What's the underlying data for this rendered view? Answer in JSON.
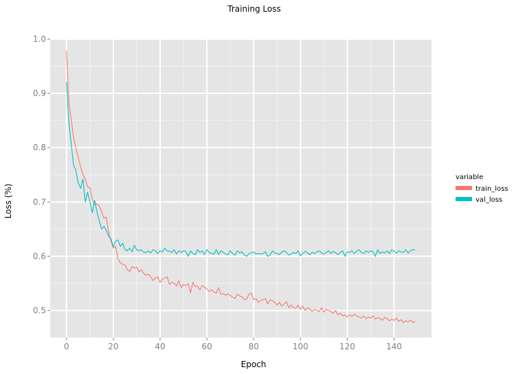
{
  "chart_data": {
    "type": "line",
    "title": "Training Loss",
    "xlabel": "Epoch",
    "ylabel": "Loss (%)",
    "xlim": [
      -7,
      156
    ],
    "ylim": [
      0.45,
      1.0
    ],
    "xticks": [
      0,
      20,
      40,
      60,
      80,
      100,
      120,
      140
    ],
    "yticks": [
      0.5,
      0.6,
      0.7,
      0.8,
      0.9,
      1.0
    ],
    "ytick_labels": [
      "0.5",
      "0.6",
      "0.7",
      "0.8",
      "0.9",
      "1.0"
    ],
    "legend": {
      "title": "variable",
      "position": "right"
    },
    "series": [
      {
        "name": "train_loss",
        "color": "#F8766D",
        "x": [
          0,
          1,
          2,
          3,
          4,
          5,
          6,
          7,
          8,
          9,
          10,
          11,
          12,
          13,
          14,
          15,
          16,
          17,
          18,
          19,
          20,
          21,
          22,
          23,
          24,
          25,
          26,
          27,
          28,
          29,
          30,
          31,
          32,
          33,
          34,
          35,
          36,
          37,
          38,
          39,
          40,
          41,
          42,
          43,
          44,
          45,
          46,
          47,
          48,
          49,
          50,
          51,
          52,
          53,
          54,
          55,
          56,
          57,
          58,
          59,
          60,
          61,
          62,
          63,
          64,
          65,
          66,
          67,
          68,
          69,
          70,
          71,
          72,
          73,
          74,
          75,
          76,
          77,
          78,
          79,
          80,
          81,
          82,
          83,
          84,
          85,
          86,
          87,
          88,
          89,
          90,
          91,
          92,
          93,
          94,
          95,
          96,
          97,
          98,
          99,
          100,
          101,
          102,
          103,
          104,
          105,
          106,
          107,
          108,
          109,
          110,
          111,
          112,
          113,
          114,
          115,
          116,
          117,
          118,
          119,
          120,
          121,
          122,
          123,
          124,
          125,
          126,
          127,
          128,
          129,
          130,
          131,
          132,
          133,
          134,
          135,
          136,
          137,
          138,
          139,
          140,
          141,
          142,
          143,
          144,
          145,
          146,
          147,
          148,
          149
        ],
        "values": [
          0.978,
          0.885,
          0.852,
          0.82,
          0.798,
          0.782,
          0.765,
          0.75,
          0.742,
          0.728,
          0.726,
          0.705,
          0.695,
          0.696,
          0.692,
          0.682,
          0.67,
          0.672,
          0.645,
          0.628,
          0.615,
          0.618,
          0.595,
          0.588,
          0.585,
          0.584,
          0.575,
          0.572,
          0.581,
          0.578,
          0.58,
          0.571,
          0.575,
          0.568,
          0.565,
          0.567,
          0.562,
          0.555,
          0.56,
          0.562,
          0.552,
          0.558,
          0.56,
          0.562,
          0.548,
          0.552,
          0.55,
          0.545,
          0.555,
          0.542,
          0.548,
          0.546,
          0.55,
          0.533,
          0.552,
          0.544,
          0.545,
          0.538,
          0.546,
          0.543,
          0.54,
          0.535,
          0.538,
          0.534,
          0.532,
          0.542,
          0.53,
          0.531,
          0.528,
          0.53,
          0.528,
          0.525,
          0.522,
          0.53,
          0.527,
          0.525,
          0.52,
          0.521,
          0.53,
          0.532,
          0.52,
          0.522,
          0.515,
          0.518,
          0.52,
          0.522,
          0.512,
          0.52,
          0.518,
          0.515,
          0.51,
          0.515,
          0.508,
          0.512,
          0.516,
          0.505,
          0.51,
          0.505,
          0.504,
          0.51,
          0.502,
          0.508,
          0.5,
          0.505,
          0.503,
          0.498,
          0.502,
          0.5,
          0.498,
          0.505,
          0.497,
          0.502,
          0.5,
          0.498,
          0.495,
          0.5,
          0.492,
          0.495,
          0.49,
          0.492,
          0.488,
          0.492,
          0.489,
          0.493,
          0.49,
          0.488,
          0.486,
          0.49,
          0.485,
          0.488,
          0.486,
          0.49,
          0.484,
          0.487,
          0.485,
          0.482,
          0.487,
          0.485,
          0.481,
          0.484,
          0.482,
          0.486,
          0.48,
          0.483,
          0.478,
          0.481,
          0.479,
          0.482,
          0.478,
          0.48
        ]
      },
      {
        "name": "val_loss",
        "color": "#00BFC4",
        "x": [
          0,
          1,
          2,
          3,
          4,
          5,
          6,
          7,
          8,
          9,
          10,
          11,
          12,
          13,
          14,
          15,
          16,
          17,
          18,
          19,
          20,
          21,
          22,
          23,
          24,
          25,
          26,
          27,
          28,
          29,
          30,
          31,
          32,
          33,
          34,
          35,
          36,
          37,
          38,
          39,
          40,
          41,
          42,
          43,
          44,
          45,
          46,
          47,
          48,
          49,
          50,
          51,
          52,
          53,
          54,
          55,
          56,
          57,
          58,
          59,
          60,
          61,
          62,
          63,
          64,
          65,
          66,
          67,
          68,
          69,
          70,
          71,
          72,
          73,
          74,
          75,
          76,
          77,
          78,
          79,
          80,
          81,
          82,
          83,
          84,
          85,
          86,
          87,
          88,
          89,
          90,
          91,
          92,
          93,
          94,
          95,
          96,
          97,
          98,
          99,
          100,
          101,
          102,
          103,
          104,
          105,
          106,
          107,
          108,
          109,
          110,
          111,
          112,
          113,
          114,
          115,
          116,
          117,
          118,
          119,
          120,
          121,
          122,
          123,
          124,
          125,
          126,
          127,
          128,
          129,
          130,
          131,
          132,
          133,
          134,
          135,
          136,
          137,
          138,
          139,
          140,
          141,
          142,
          143,
          144,
          145,
          146,
          147,
          148,
          149
        ],
        "values": [
          0.921,
          0.848,
          0.808,
          0.768,
          0.758,
          0.735,
          0.725,
          0.742,
          0.7,
          0.718,
          0.7,
          0.68,
          0.703,
          0.682,
          0.665,
          0.65,
          0.655,
          0.648,
          0.637,
          0.632,
          0.618,
          0.628,
          0.63,
          0.618,
          0.624,
          0.612,
          0.61,
          0.615,
          0.608,
          0.62,
          0.612,
          0.61,
          0.612,
          0.607,
          0.607,
          0.61,
          0.606,
          0.612,
          0.61,
          0.605,
          0.61,
          0.608,
          0.615,
          0.61,
          0.609,
          0.607,
          0.612,
          0.604,
          0.61,
          0.607,
          0.61,
          0.609,
          0.6,
          0.61,
          0.605,
          0.603,
          0.612,
          0.607,
          0.61,
          0.603,
          0.612,
          0.607,
          0.605,
          0.604,
          0.612,
          0.603,
          0.61,
          0.607,
          0.604,
          0.603,
          0.61,
          0.605,
          0.602,
          0.61,
          0.606,
          0.608,
          0.602,
          0.6,
          0.605,
          0.606,
          0.608,
          0.604,
          0.605,
          0.604,
          0.605,
          0.608,
          0.6,
          0.602,
          0.61,
          0.606,
          0.605,
          0.603,
          0.608,
          0.61,
          0.607,
          0.602,
          0.604,
          0.607,
          0.605,
          0.61,
          0.601,
          0.605,
          0.609,
          0.606,
          0.603,
          0.607,
          0.605,
          0.608,
          0.61,
          0.606,
          0.604,
          0.607,
          0.61,
          0.605,
          0.609,
          0.606,
          0.603,
          0.607,
          0.61,
          0.6,
          0.608,
          0.607,
          0.61,
          0.605,
          0.609,
          0.612,
          0.607,
          0.605,
          0.61,
          0.607,
          0.61,
          0.608,
          0.6,
          0.612,
          0.605,
          0.608,
          0.606,
          0.61,
          0.605,
          0.612,
          0.609,
          0.606,
          0.61,
          0.608,
          0.607,
          0.612,
          0.606,
          0.61,
          0.612,
          0.612
        ]
      }
    ]
  }
}
